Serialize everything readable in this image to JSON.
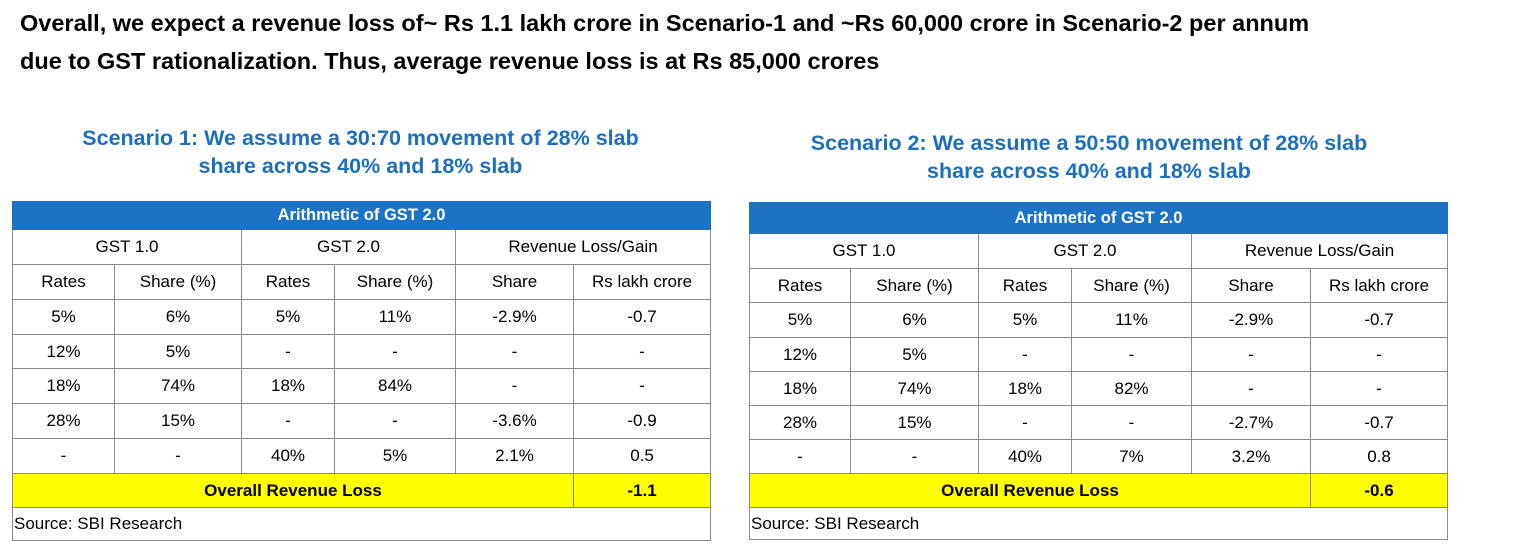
{
  "headline": {
    "line1": "Overall, we expect a revenue loss of~ Rs 1.1 lakh crore in Scenario-1 and  ~Rs 60,000 crore in Scenario-2  per annum",
    "line2": "due to GST rationalization. Thus, average revenue loss is at Rs 85,000 crores"
  },
  "scenarios": [
    {
      "title_line1": "Scenario 1: We assume a 30:70 movement of 28% slab",
      "title_line2": "share across 40% and 18% slab",
      "banner": "Arithmetic of GST 2.0",
      "groups": [
        "GST 1.0",
        "GST 2.0",
        "Revenue Loss/Gain"
      ],
      "columns": [
        "Rates",
        "Share (%)",
        "Rates",
        "Share (%)",
        "Share",
        "Rs lakh crore"
      ],
      "rows": [
        [
          "5%",
          "6%",
          "5%",
          "11%",
          "-2.9%",
          "-0.7"
        ],
        [
          "12%",
          "5%",
          "-",
          "-",
          "-",
          "-"
        ],
        [
          "18%",
          "74%",
          "18%",
          "84%",
          "-",
          "-"
        ],
        [
          "28%",
          "15%",
          "-",
          "-",
          "-3.6%",
          "-0.9"
        ],
        [
          "-",
          "-",
          "40%",
          "5%",
          "2.1%",
          "0.5"
        ]
      ],
      "total_label": "Overall Revenue Loss",
      "total_value": "-1.1",
      "source": "Source: SBI Research"
    },
    {
      "title_line1": "Scenario 2: We assume a 50:50 movement of 28% slab",
      "title_line2": "share across 40% and 18% slab",
      "banner": "Arithmetic of GST 2.0",
      "groups": [
        "GST 1.0",
        "GST 2.0",
        "Revenue Loss/Gain"
      ],
      "columns": [
        "Rates",
        "Share (%)",
        "Rates",
        "Share (%)",
        "Share",
        "Rs lakh crore"
      ],
      "rows": [
        [
          "5%",
          "6%",
          "5%",
          "11%",
          "-2.9%",
          "-0.7"
        ],
        [
          "12%",
          "5%",
          "-",
          "-",
          "-",
          "-"
        ],
        [
          "18%",
          "74%",
          "18%",
          "82%",
          "-",
          "-"
        ],
        [
          "28%",
          "15%",
          "-",
          "-",
          "-2.7%",
          "-0.7"
        ],
        [
          "-",
          "-",
          "40%",
          "7%",
          "3.2%",
          "0.8"
        ]
      ],
      "total_label": "Overall Revenue Loss",
      "total_value": "-0.6",
      "source": "Source: SBI Research"
    }
  ]
}
